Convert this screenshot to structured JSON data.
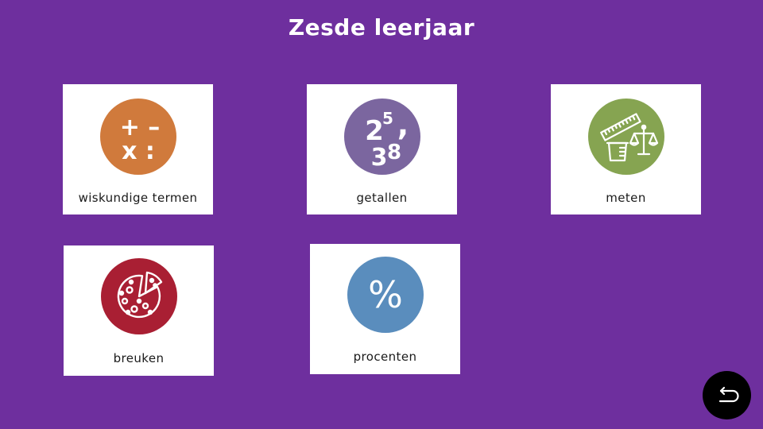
{
  "page": {
    "title": "Zesde leerjaar",
    "background_color": "#6e2f9e"
  },
  "tiles": [
    {
      "label": "wiskundige termen",
      "icon": "math-operators-icon",
      "color": "#d07a3c"
    },
    {
      "label": "getallen",
      "icon": "numbers-icon",
      "color": "#7b669f"
    },
    {
      "label": "meten",
      "icon": "measuring-icon",
      "color": "#86a451"
    },
    {
      "label": "breuken",
      "icon": "pizza-fraction-icon",
      "color": "#a91f33"
    },
    {
      "label": "procenten",
      "icon": "percent-icon",
      "color": "#5a8dbd"
    }
  ],
  "icons": {
    "math_operators": {
      "top_row": "+ –",
      "bottom_row": "x :"
    },
    "numbers": {
      "base": "2",
      "exponent": "5",
      "comma": ",",
      "second_digit": "3",
      "third_digit": "8"
    },
    "percent": {
      "symbol": "%"
    }
  },
  "back_button": {
    "icon": "back-arrow-icon",
    "color": "#000000"
  }
}
